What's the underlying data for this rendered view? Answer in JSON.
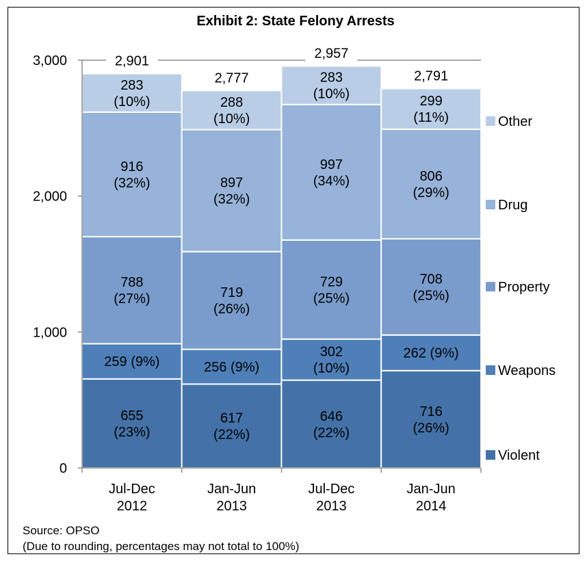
{
  "chart_data": {
    "type": "bar",
    "stacked": true,
    "title": "Exhibit 2: State Felony Arrests",
    "categories": [
      [
        "Jul-Dec",
        "2012"
      ],
      [
        "Jan-Jun",
        "2013"
      ],
      [
        "Jul-Dec",
        "2013"
      ],
      [
        "Jan-Jun",
        "2014"
      ]
    ],
    "ylim": [
      0,
      3000
    ],
    "yticks": [
      0,
      1000,
      2000,
      3000
    ],
    "ytick_labels": [
      "0",
      "1,000",
      "2,000",
      "3,000"
    ],
    "grid": true,
    "legend_position": "right",
    "series": [
      {
        "name": "Violent",
        "color": "#4472a8",
        "values": [
          655,
          617,
          646,
          716
        ],
        "labels": [
          [
            "655",
            "(23%)"
          ],
          [
            "617",
            "(22%)"
          ],
          [
            "646",
            "(22%)"
          ],
          [
            "716",
            "(26%)"
          ]
        ]
      },
      {
        "name": "Weapons",
        "color": "#4f7fb9",
        "values": [
          259,
          256,
          302,
          262
        ],
        "labels": [
          [
            "259 (9%)"
          ],
          [
            "256 (9%)"
          ],
          [
            "302",
            "(10%)"
          ],
          [
            "262 (9%)"
          ]
        ]
      },
      {
        "name": "Property",
        "color": "#7a9ccc",
        "values": [
          788,
          719,
          729,
          708
        ],
        "labels": [
          [
            "788",
            "(27%)"
          ],
          [
            "719",
            "(26%)"
          ],
          [
            "729",
            "(25%)"
          ],
          [
            "708",
            "(25%)"
          ]
        ]
      },
      {
        "name": "Drug",
        "color": "#97b3d9",
        "values": [
          916,
          897,
          997,
          806
        ],
        "labels": [
          [
            "916",
            "(32%)"
          ],
          [
            "897",
            "(32%)"
          ],
          [
            "997",
            "(34%)"
          ],
          [
            "806",
            "(29%)"
          ]
        ]
      },
      {
        "name": "Other",
        "color": "#b9cde6",
        "values": [
          283,
          288,
          283,
          299
        ],
        "labels": [
          [
            "283",
            "(10%)"
          ],
          [
            "288",
            "(10%)"
          ],
          [
            "283",
            "(10%)"
          ],
          [
            "299",
            "(11%)"
          ]
        ]
      }
    ],
    "totals": [
      "2,901",
      "2,777",
      "2,957",
      "2,791"
    ]
  },
  "footer": {
    "source": "Source: OPSO",
    "note": "(Due to rounding, percentages may not total to 100%)"
  }
}
